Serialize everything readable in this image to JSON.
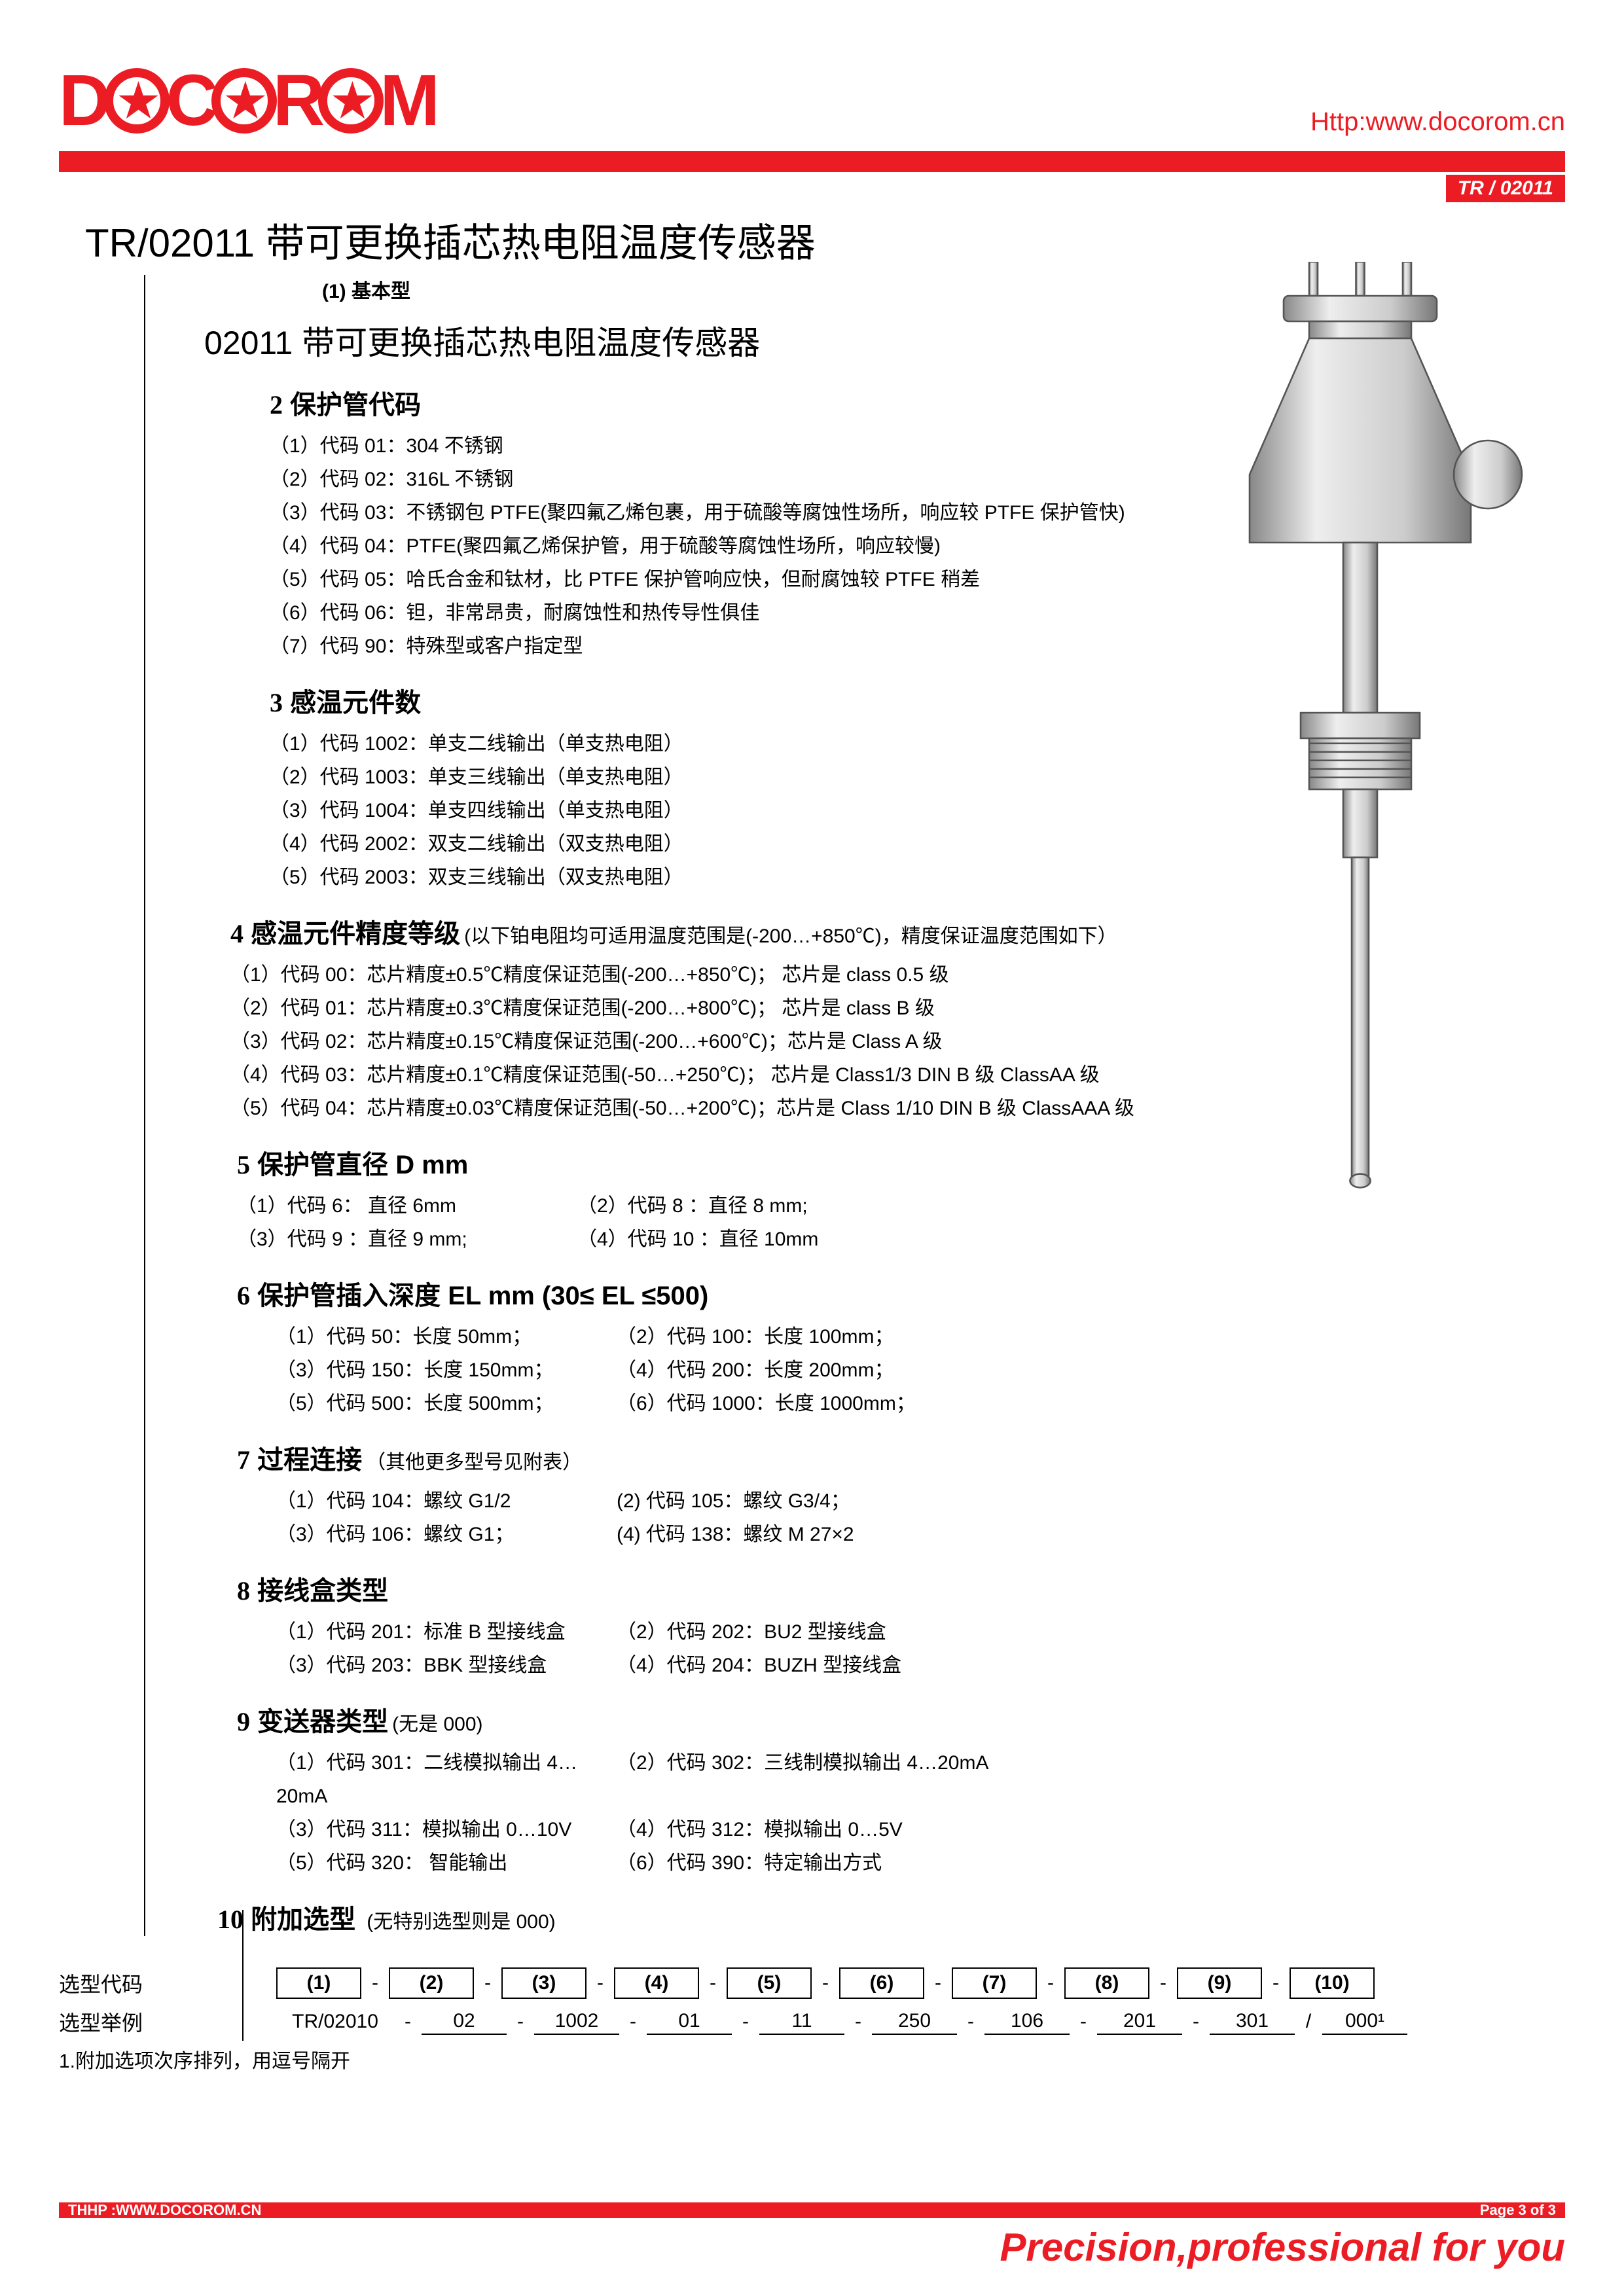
{
  "colors": {
    "accent": "#ec1c24",
    "text": "#000",
    "bg": "#fff"
  },
  "header": {
    "logo": "DOCOROM",
    "url": "Http:www.docorom.cn",
    "badge": "TR / 02011"
  },
  "title": "TR/02011 带可更换插芯热电阻温度传感器",
  "note1": "(1) 基本型",
  "subtitle": "02011 带可更换插芯热电阻温度传感器",
  "s2": {
    "num": "2",
    "title": "保护管代码",
    "items": [
      "（1）代码 01：304 不锈钢",
      "（2）代码 02：316L 不锈钢",
      "（3）代码 03：不锈钢包 PTFE(聚四氟乙烯包裹，用于硫酸等腐蚀性场所，响应较 PTFE 保护管快)",
      "（4）代码 04：PTFE(聚四氟乙烯保护管，用于硫酸等腐蚀性场所，响应较慢)",
      "（5）代码 05：哈氏合金和钛材，比 PTFE 保护管响应快，但耐腐蚀较 PTFE 稍差",
      "（6）代码 06：钽，非常昂贵，耐腐蚀性和热传导性俱佳",
      "（7）代码 90：特殊型或客户指定型"
    ]
  },
  "s3": {
    "num": "3",
    "title": "感温元件数",
    "items": [
      "（1）代码 1002：单支二线输出（单支热电阻）",
      "（2）代码 1003：单支三线输出（单支热电阻）",
      "（3）代码 1004：单支四线输出（单支热电阻）",
      "（4）代码 2002：双支二线输出（双支热电阻）",
      "（5）代码 2003：双支三线输出（双支热电阻）"
    ]
  },
  "s4": {
    "num": "4",
    "title": "感温元件精度等级",
    "after": "(以下铂电阻均可适用温度范围是(-200…+850℃)，精度保证温度范围如下）",
    "items": [
      "（1）代码 00：芯片精度±0.5℃精度保证范围(-200…+850℃)； 芯片是 class 0.5 级",
      "（2）代码 01：芯片精度±0.3℃精度保证范围(-200…+800℃)； 芯片是 class B 级",
      "（3）代码 02：芯片精度±0.15℃精度保证范围(-200…+600℃)；芯片是 Class A 级",
      "（4）代码 03：芯片精度±0.1℃精度保证范围(-50…+250℃)； 芯片是 Class1/3 DIN B 级 ClassAA 级",
      "（5）代码 04：芯片精度±0.03℃精度保证范围(-50…+200℃)；芯片是 Class 1/10 DIN B 级 ClassAAA 级"
    ]
  },
  "s5": {
    "num": "5",
    "title": "保护管直径 D mm",
    "rows": [
      [
        "（1）代码 6： 直径 6mm",
        "（2）代码 8 ：直径 8 mm;"
      ],
      [
        "（3）代码 9 ：直径 9 mm;",
        "（4）代码 10 ：直径 10mm"
      ]
    ]
  },
  "s6": {
    "num": "6",
    "title": "保护管插入深度 EL mm (30≤ EL ≤500)",
    "rows": [
      [
        "（1）代码 50：长度 50mm；",
        "（2）代码 100：长度 100mm；"
      ],
      [
        "（3）代码 150：长度 150mm；",
        "（4）代码 200：长度 200mm；"
      ],
      [
        "（5）代码 500：长度 500mm；",
        "（6）代码 1000：长度 1000mm；"
      ]
    ]
  },
  "s7": {
    "num": "7",
    "title": "过程连接",
    "after": "（其他更多型号见附表）",
    "rows": [
      [
        "（1）代码 104：螺纹 G1/2",
        "(2) 代码 105：螺纹 G3/4；"
      ],
      [
        "（3）代码 106：螺纹 G1；",
        "(4) 代码 138：螺纹 M 27×2"
      ]
    ]
  },
  "s8": {
    "num": "8",
    "title": "接线盒类型",
    "rows": [
      [
        "（1）代码 201：标准 B 型接线盒",
        "（2）代码 202：BU2 型接线盒"
      ],
      [
        "（3）代码 203：BBK 型接线盒",
        "（4）代码 204：BUZH 型接线盒"
      ]
    ]
  },
  "s9": {
    "num": "9",
    "title": "变送器类型",
    "after": "(无是 000)",
    "rows": [
      [
        "（1）代码 301：二线模拟输出 4…20mA",
        "（2）代码 302：三线制模拟输出 4…20mA"
      ],
      [
        "（3）代码 311：模拟输出 0…10V",
        "（4）代码 312：模拟输出 0…5V"
      ],
      [
        "（5）代码 320： 智能输出",
        "（6）代码 390：特定输出方式"
      ]
    ]
  },
  "s10": {
    "num": "10",
    "title": "附加选型",
    "after": "(无特别选型则是 000)"
  },
  "selector": {
    "label1": "选型代码",
    "label2": "选型举例",
    "heads": [
      "(1)",
      "(2)",
      "(3)",
      "(4)",
      "(5)",
      "(6)",
      "(7)",
      "(8)",
      "(9)",
      "(10)"
    ],
    "example": [
      "TR/02010",
      "02",
      "1002",
      "01",
      "11",
      "250",
      "106",
      "201",
      "301",
      "000¹"
    ],
    "seps": [
      "-",
      "-",
      "-",
      "-",
      "-",
      "-",
      "-",
      "-",
      "/"
    ],
    "footnote": "1.附加选项次序排列，用逗号隔开"
  },
  "footer": {
    "left": "THHP :WWW.DOCOROM.CN",
    "right": "Page 3 of 3",
    "slogan": "Precision,professional for you"
  }
}
